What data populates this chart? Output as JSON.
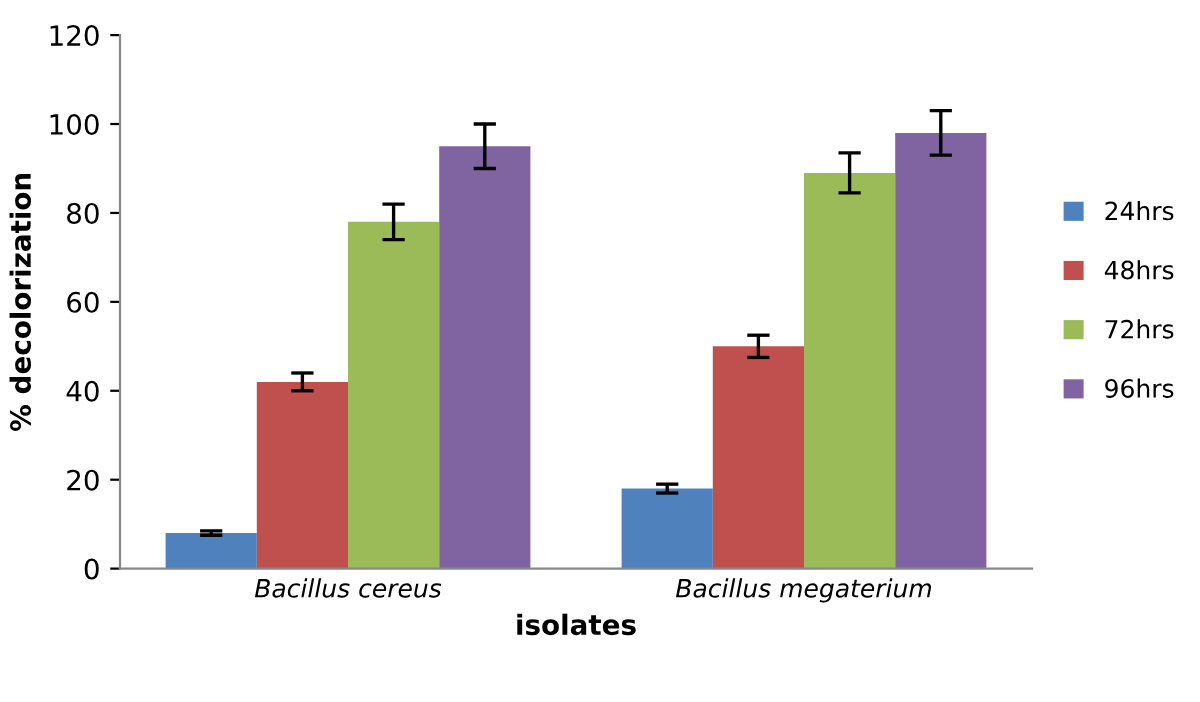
{
  "chart_data": {
    "type": "bar",
    "xlabel": "isolates",
    "ylabel": "% decolorization",
    "categories": [
      "Bacillus cereus",
      "Bacillus megaterium"
    ],
    "series": [
      {
        "name": "24hrs",
        "color": "#4f81bd",
        "values": [
          8,
          18
        ],
        "errors": [
          0.5,
          1
        ]
      },
      {
        "name": "48hrs",
        "color": "#c0504d",
        "values": [
          42,
          50
        ],
        "errors": [
          2,
          2.5
        ]
      },
      {
        "name": "72hrs",
        "color": "#9bbb59",
        "values": [
          78,
          89
        ],
        "errors": [
          4,
          4.5
        ]
      },
      {
        "name": "96hrs",
        "color": "#8064a2",
        "values": [
          95,
          98
        ],
        "errors": [
          5,
          5
        ]
      }
    ],
    "ylim": [
      0,
      120
    ],
    "yticks": [
      0,
      20,
      40,
      60,
      80,
      100,
      120
    ],
    "grid": false,
    "legend": "right"
  }
}
